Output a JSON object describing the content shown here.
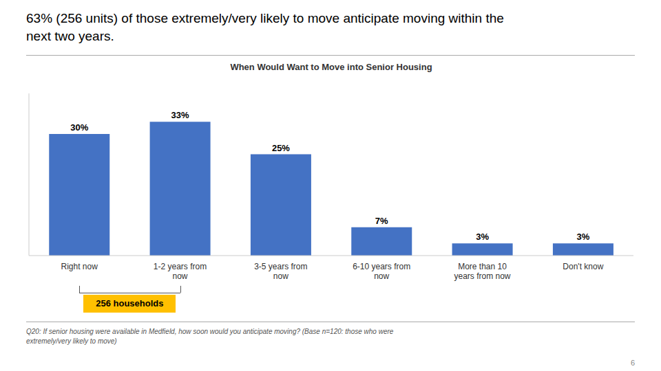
{
  "chart_data": {
    "type": "bar",
    "title": "63% (256 units) of those extremely/very likely to move anticipate moving within the\nnext two years.",
    "subtitle": "When Would Want to Move into Senior Housing",
    "categories": [
      "Right now",
      "1-2 years from\nnow",
      "3-5 years from\nnow",
      "6-10 years from\nnow",
      "More than 10\nyears from now",
      "Don't know"
    ],
    "values": [
      30,
      33,
      25,
      7,
      3,
      3
    ],
    "value_labels": [
      "30%",
      "33%",
      "25%",
      "7%",
      "3%",
      "3%"
    ],
    "data_labels": true,
    "color": "#4472C4",
    "ylim": [
      0,
      40
    ],
    "grid": false,
    "tick_labels": "x",
    "annotations": [
      {
        "text": "256 households",
        "color": "#FFC000"
      }
    ],
    "footnote": "Q20:  If senior housing were available in Medfield, how soon would you anticipate moving?  (Base n=120:  those who were\nextremely/very likely to move)",
    "page_number": "6"
  }
}
